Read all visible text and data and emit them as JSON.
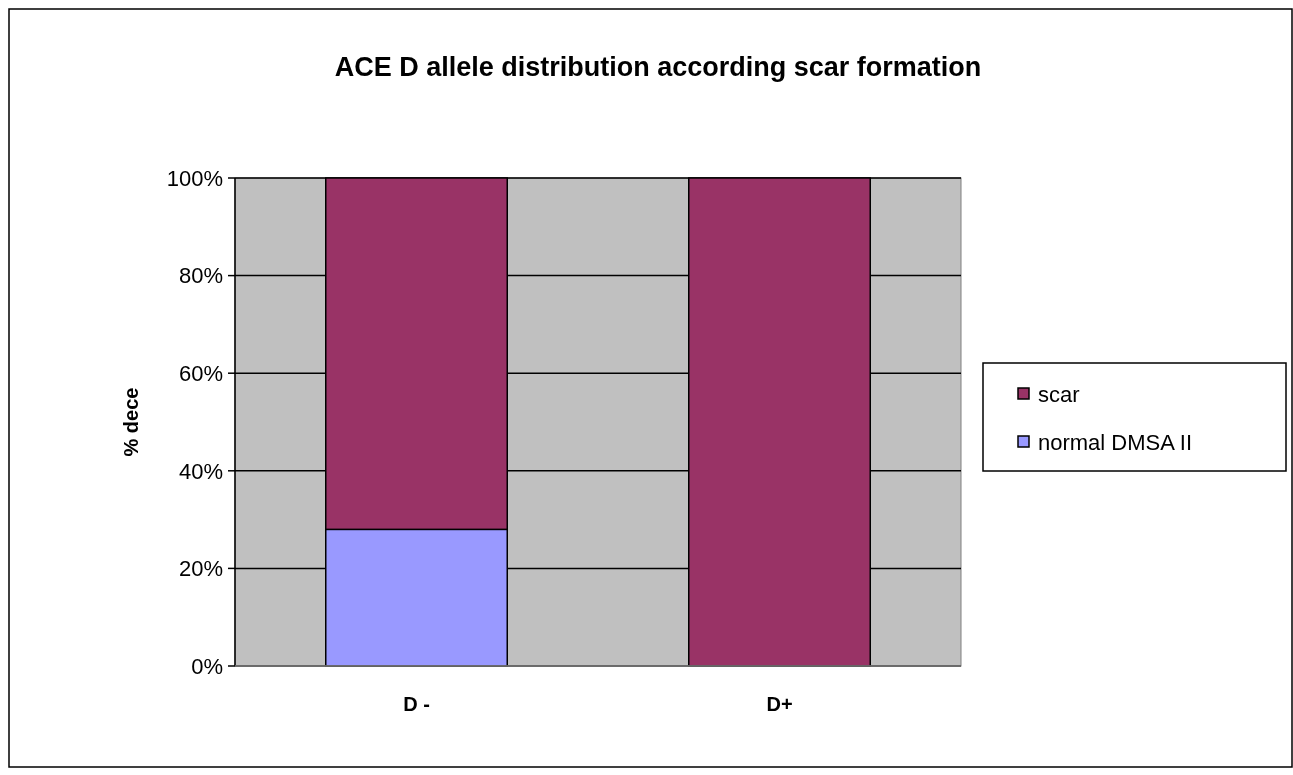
{
  "chart_data": {
    "type": "bar",
    "title": "ACE D allele distribution according scar formation",
    "ylabel": "% dece",
    "categories": [
      "D -",
      "D+"
    ],
    "stacked": true,
    "grid": "y",
    "legend": "right",
    "ylim": [
      0,
      100
    ],
    "yticks": [
      {
        "value": 0,
        "label": "0%"
      },
      {
        "value": 20,
        "label": "20%"
      },
      {
        "value": 40,
        "label": "40%"
      },
      {
        "value": 60,
        "label": "60%"
      },
      {
        "value": 80,
        "label": "80%"
      },
      {
        "value": 100,
        "label": "100%"
      }
    ],
    "series": [
      {
        "name": "normal DMSA II",
        "color": "#9999ff",
        "values": [
          28,
          0
        ]
      },
      {
        "name": "scar",
        "color": "#993366",
        "values": [
          72,
          100
        ]
      }
    ]
  }
}
